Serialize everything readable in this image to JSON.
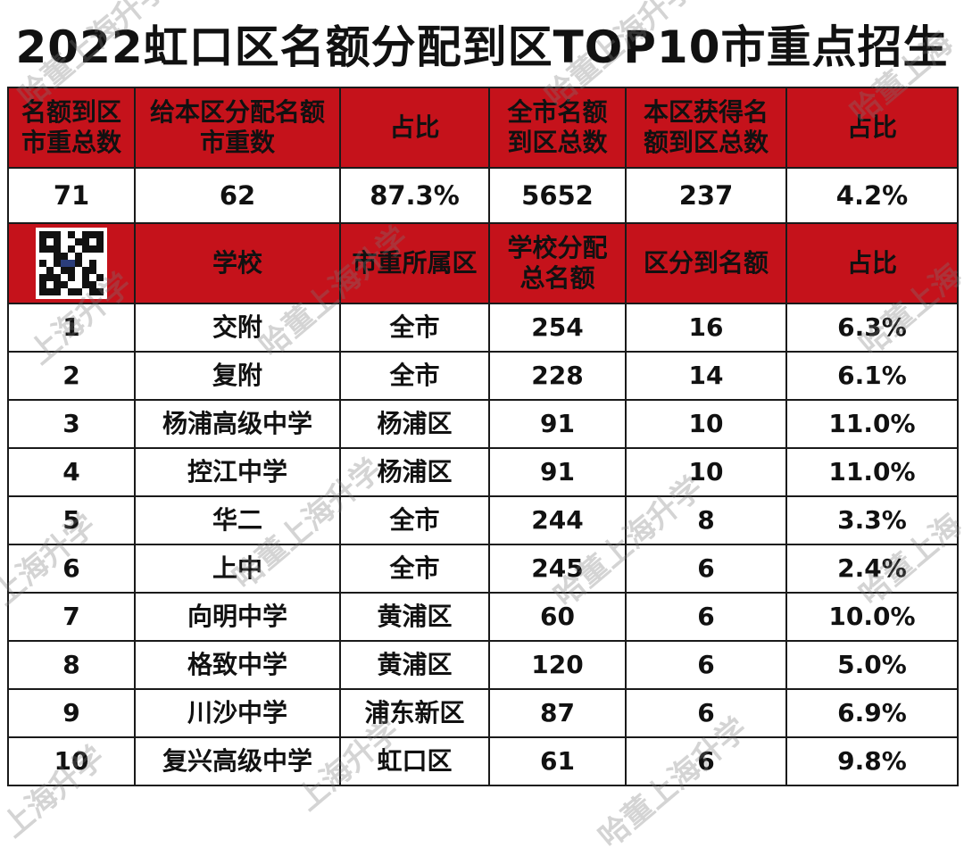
{
  "title": "2022虹口区名额分配到区TOP10市重点招生",
  "summary_headers": [
    "名额到区\n市重总数",
    "给本区分配名额\n市重数",
    "占比",
    "全市名额\n到区总数",
    "本区获得名\n额到区总数",
    "占比"
  ],
  "summary_values": [
    "71",
    "62",
    "87.3%",
    "5652",
    "237",
    "4.2%"
  ],
  "detail_headers": [
    "学校",
    "市重所属区",
    "学校分配\n总名额",
    "区分到名额",
    "占比"
  ],
  "rows": [
    [
      "1",
      "交附",
      "全市",
      "254",
      "16",
      "6.3%"
    ],
    [
      "2",
      "复附",
      "全市",
      "228",
      "14",
      "6.1%"
    ],
    [
      "3",
      "杨浦高级中学",
      "杨浦区",
      "91",
      "10",
      "11.0%"
    ],
    [
      "4",
      "控江中学",
      "杨浦区",
      "91",
      "10",
      "11.0%"
    ],
    [
      "5",
      "华二",
      "全市",
      "244",
      "8",
      "3.3%"
    ],
    [
      "6",
      "上中",
      "全市",
      "245",
      "6",
      "2.4%"
    ],
    [
      "7",
      "向明中学",
      "黄浦区",
      "60",
      "6",
      "10.0%"
    ],
    [
      "8",
      "格致中学",
      "黄浦区",
      "120",
      "6",
      "5.0%"
    ],
    [
      "9",
      "川沙中学",
      "浦东新区",
      "87",
      "6",
      "6.9%"
    ],
    [
      "10",
      "复兴高级中学",
      "虹口区",
      "61",
      "6",
      "9.8%"
    ]
  ],
  "watermarks": [
    "哈董上海升学",
    "上海升学",
    "哈董上海"
  ],
  "colors": {
    "header_bg": "#c5121b",
    "header_text": "#ffffff",
    "border": "#1a1a1a"
  },
  "icons": {
    "qr": "qr-code-icon"
  }
}
